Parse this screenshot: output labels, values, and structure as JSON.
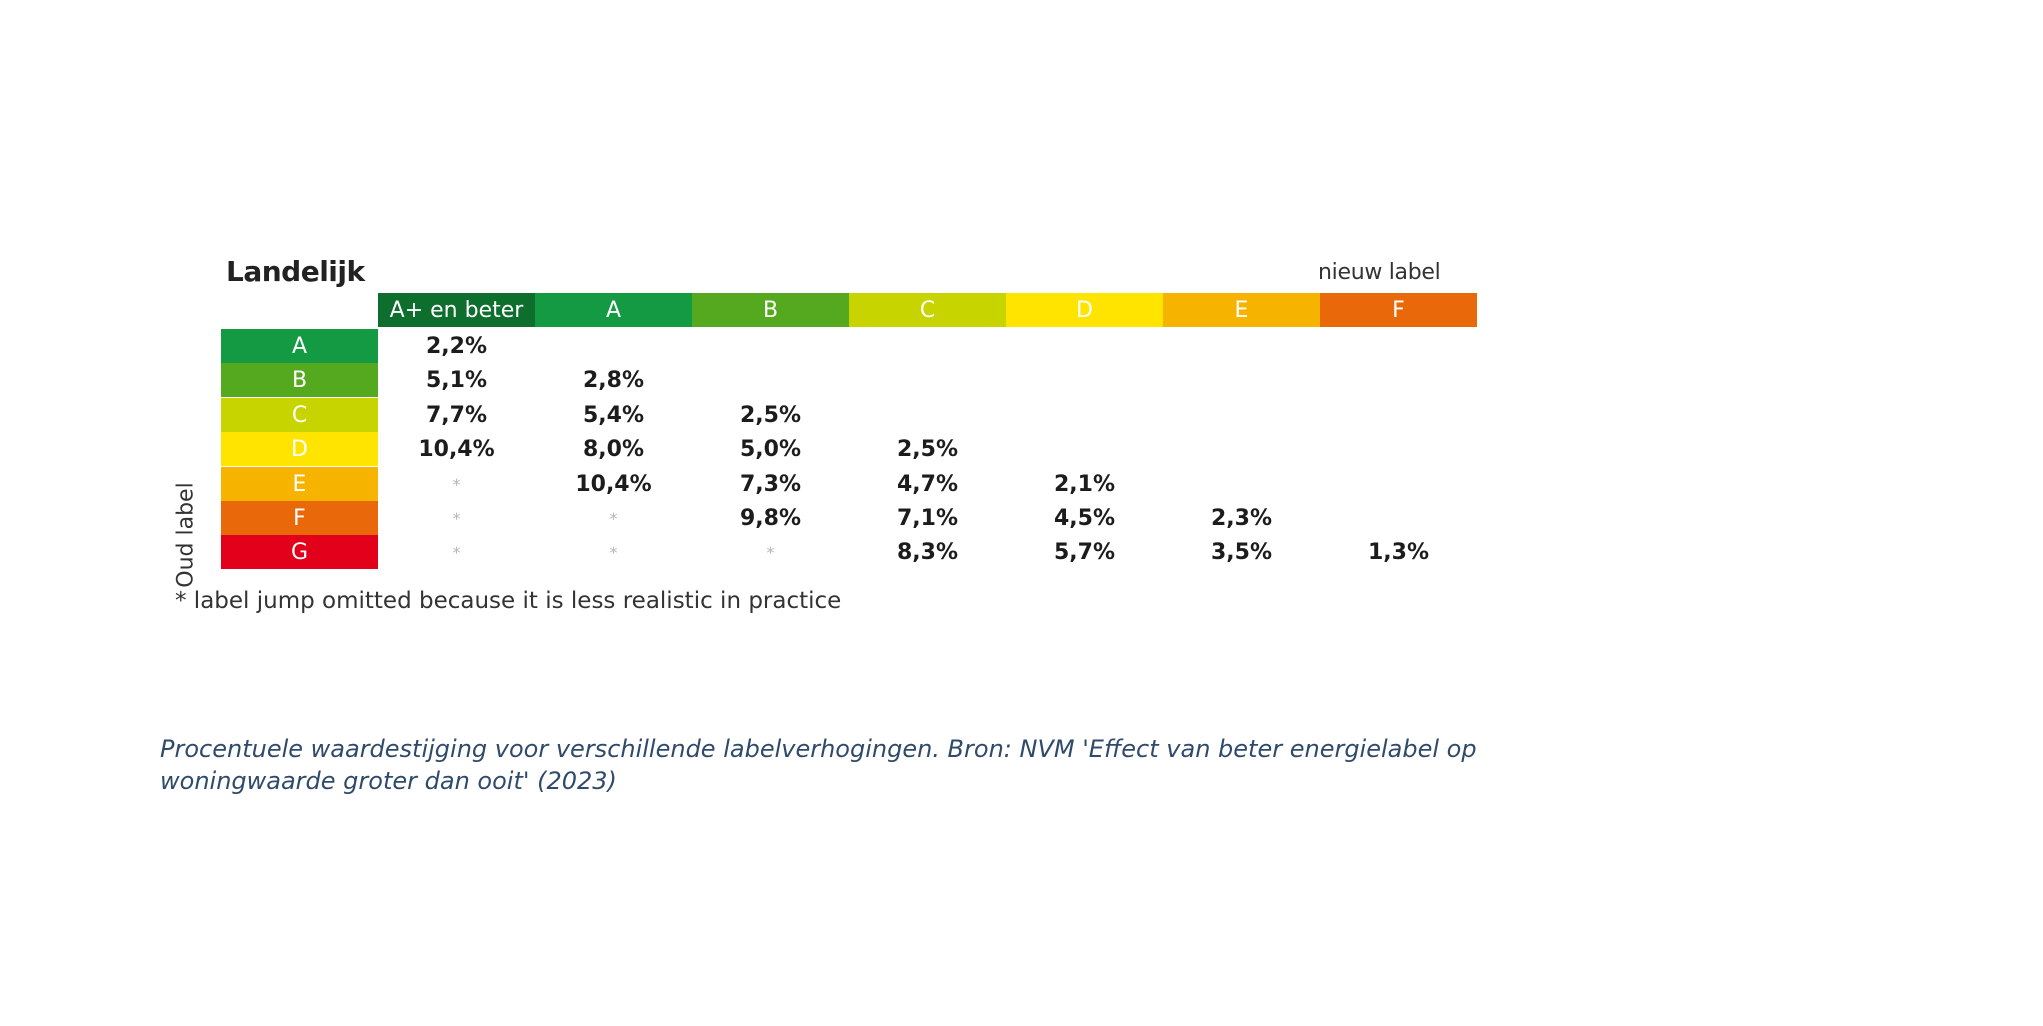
{
  "chart_data": {
    "type": "table",
    "title": "Landelijk",
    "column_axis_label": "nieuw label",
    "row_axis_label": "Oud label",
    "columns": [
      {
        "label": "A+ en beter",
        "color": "#0e6e2e"
      },
      {
        "label": "A",
        "color": "#139a43"
      },
      {
        "label": "B",
        "color": "#54a91f"
      },
      {
        "label": "C",
        "color": "#c8d400"
      },
      {
        "label": "D",
        "color": "#ffe400"
      },
      {
        "label": "E",
        "color": "#f6b300"
      },
      {
        "label": "F",
        "color": "#e8680a"
      }
    ],
    "rows": [
      {
        "label": "A",
        "color": "#139a43",
        "cells": [
          "2,2%",
          "",
          "",
          "",
          "",
          "",
          ""
        ]
      },
      {
        "label": "B",
        "color": "#54a91f",
        "cells": [
          "5,1%",
          "2,8%",
          "",
          "",
          "",
          "",
          ""
        ]
      },
      {
        "label": "C",
        "color": "#c8d400",
        "cells": [
          "7,7%",
          "5,4%",
          "2,5%",
          "",
          "",
          "",
          ""
        ]
      },
      {
        "label": "D",
        "color": "#ffe400",
        "cells": [
          "10,4%",
          "8,0%",
          "5,0%",
          "2,5%",
          "",
          "",
          ""
        ]
      },
      {
        "label": "E",
        "color": "#f6b300",
        "cells": [
          "*",
          "10,4%",
          "7,3%",
          "4,7%",
          "2,1%",
          "",
          ""
        ]
      },
      {
        "label": "F",
        "color": "#e8680a",
        "cells": [
          "*",
          "*",
          "9,8%",
          "7,1%",
          "4,5%",
          "2,3%",
          ""
        ]
      },
      {
        "label": "G",
        "color": "#e2001a",
        "cells": [
          "*",
          "*",
          "*",
          "8,3%",
          "5,7%",
          "3,5%",
          "1,3%"
        ]
      }
    ],
    "footnote": "* label jump omitted because it is less realistic in practice"
  },
  "caption": "Procentuele waardestijging voor verschillende labelverhogingen. Bron: NVM 'Effect van beter energielabel op woningwaarde groter dan ooit' (2023)"
}
